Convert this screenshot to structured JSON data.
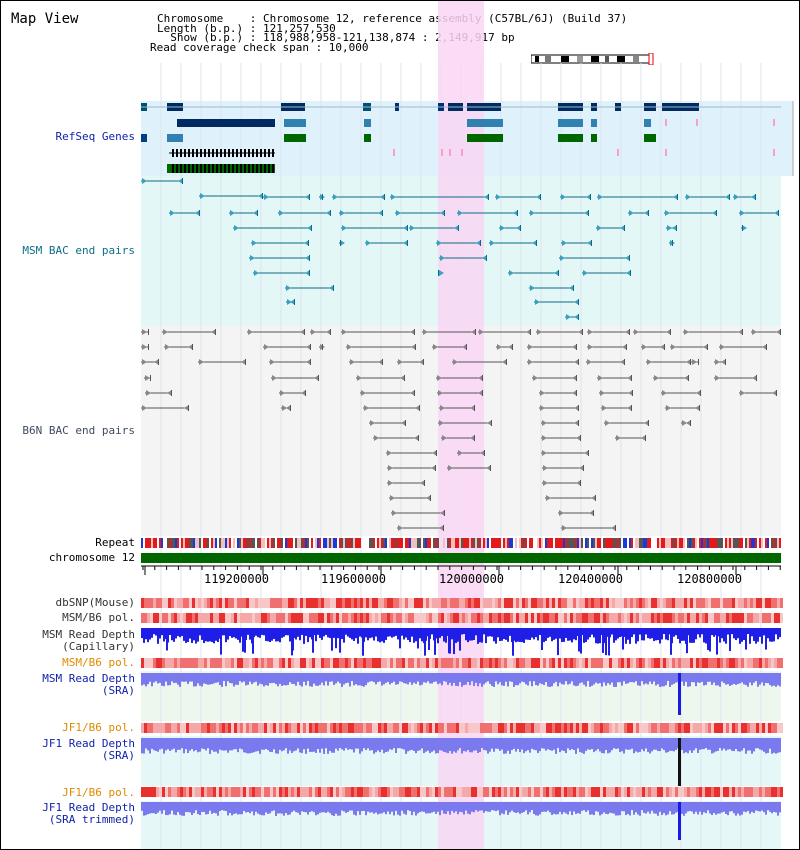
{
  "view_title": "Map View",
  "header": {
    "chromosome_line": "Chromosome    : Chromosome 12, reference assembly (C57BL/6J) (Build 37)",
    "length_line": "Length (b.p.) : 121,257,530",
    "show_line": "  Show (b.p.) : 118,988,958-121,138,874 : 2,149,917 bp",
    "coverage_line": "Read coverage check span : 10,000"
  },
  "colors": {
    "highlight": "#f9d6f4",
    "refseq_bg": "#dff2fb",
    "msm_bac_bg": "#e3f7f7",
    "b6n_bac_bg": "#f4f4f4",
    "sra_bg": "#eef7ee",
    "jf1_bg": "#e5f7f7",
    "label_blue": "#1122aa",
    "label_orange": "#e08a00",
    "label_teal": "#0b6e88",
    "label_slate": "#404a60",
    "depth_blue": "#1e1ee6",
    "depth_light_blue": "#7a7aee",
    "chromosome_green": "#006600"
  },
  "tracks": {
    "refseq": "RefSeq Genes",
    "msm_bac": "MSM BAC end pairs",
    "b6n_bac": "B6N BAC end pairs",
    "repeat": "Repeat",
    "chromosome": "chromosome 12",
    "dbsnp": "dbSNP(Mouse)",
    "msm_b6_pol_1": "MSM/B6 pol.",
    "msm_read_depth_cap": "MSM Read Depth\n(Capillary)",
    "msm_b6_pol_2": "MSM/B6 pol.",
    "msm_read_depth_sra": "MSM Read Depth\n(SRA)",
    "jf1_b6_pol_1": "JF1/B6 pol.",
    "jf1_read_depth_sra": "JF1 Read Depth\n(SRA)",
    "jf1_b6_pol_2": "JF1/B6 pol.",
    "jf1_read_depth_trim": "JF1 Read Depth\n(SRA trimmed)"
  },
  "axis": {
    "ticks": [
      "119200000",
      "119600000",
      "120000000",
      "120400000",
      "120800000"
    ]
  }
}
